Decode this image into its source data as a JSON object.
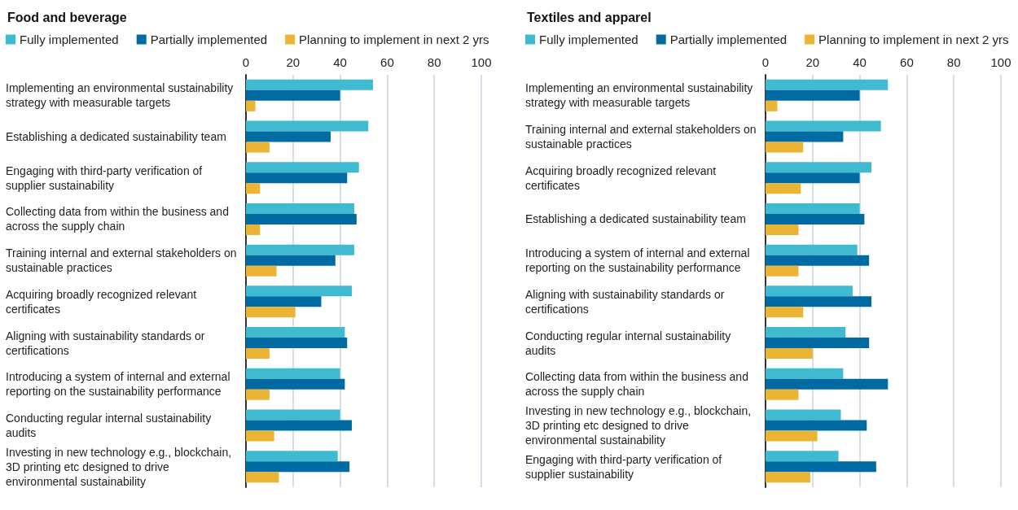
{
  "chart_data": [
    {
      "type": "bar",
      "orientation": "horizontal",
      "title": "Food and beverage",
      "legend": "top left",
      "grid": "x",
      "xlim": [
        0,
        100
      ],
      "xticks": [
        0,
        20,
        40,
        60,
        80,
        100
      ],
      "categories": [
        "Implementing an environmental sustainability strategy with measurable targets",
        "Establishing a dedicated sustainability team",
        "Engaging with third-party verification of supplier sustainability",
        "Collecting data from within the business and across the supply chain",
        "Training internal and external stakeholders on sustainable practices",
        "Acquiring broadly recognized relevant certificates",
        "Aligning with sustainability standards or certifications",
        "Introducing a system of internal and external reporting on the sustainability performance",
        "Conducting regular internal sustainability audits",
        "Investing in new technology e.g., blockchain, 3D printing etc designed to drive environmental sustainability"
      ],
      "series": [
        {
          "name": "Fully implemented",
          "color": "#3fbad1",
          "values": [
            54,
            52,
            48,
            46,
            46,
            45,
            42,
            40,
            40,
            39
          ]
        },
        {
          "name": "Partially implemented",
          "color": "#006ba2",
          "values": [
            40,
            36,
            43,
            47,
            38,
            32,
            43,
            42,
            45,
            44
          ]
        },
        {
          "name": "Planning to implement in next 2 yrs",
          "color": "#ebb434",
          "values": [
            4,
            10,
            6,
            6,
            13,
            21,
            10,
            10,
            12,
            14
          ]
        }
      ]
    },
    {
      "type": "bar",
      "orientation": "horizontal",
      "title": "Textiles and apparel",
      "legend": "top left",
      "grid": "x",
      "xlim": [
        0,
        100
      ],
      "xticks": [
        0,
        20,
        40,
        60,
        80,
        100
      ],
      "categories": [
        "Implementing an environmental sustainability strategy with measurable targets",
        "Training internal and external stakeholders on sustainable practices",
        "Acquiring broadly recognized relevant certificates",
        "Establishing a dedicated sustainability team",
        "Introducing a system of internal and external reporting on the sustainability performance",
        "Aligning with sustainability standards or certifications",
        "Conducting regular internal sustainability audits",
        "Collecting data from within the business and across the supply chain",
        "Investing in new technology e.g., blockchain, 3D printing etc designed to drive environmental sustainability",
        "Engaging with third-party verification of supplier sustainability"
      ],
      "series": [
        {
          "name": "Fully implemented",
          "color": "#3fbad1",
          "values": [
            52,
            49,
            45,
            40,
            39,
            37,
            34,
            33,
            32,
            31
          ]
        },
        {
          "name": "Partially implemented",
          "color": "#006ba2",
          "values": [
            40,
            33,
            40,
            42,
            44,
            45,
            44,
            52,
            43,
            47
          ]
        },
        {
          "name": "Planning to implement in next 2 yrs",
          "color": "#ebb434",
          "values": [
            5,
            16,
            15,
            14,
            14,
            16,
            20,
            14,
            22,
            19
          ]
        }
      ]
    }
  ]
}
